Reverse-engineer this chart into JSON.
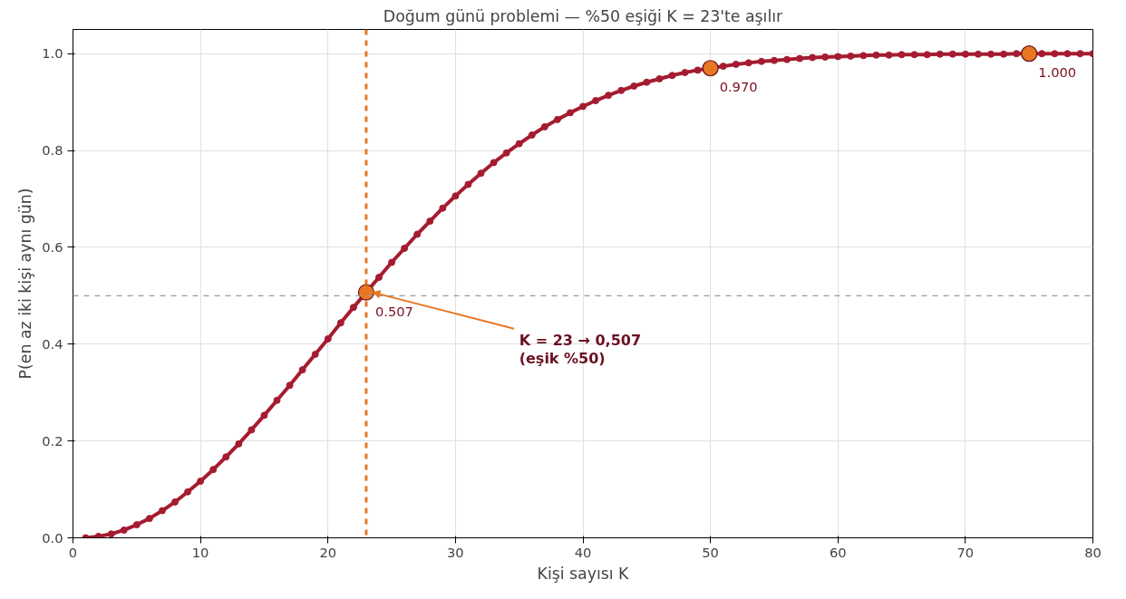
{
  "chart_data": {
    "type": "line",
    "title": "Doğum günü problemi — %50 eşiği K = 23'te aşılır",
    "xlabel": "Kişi sayısı K",
    "ylabel": "P(en az iki kişi aynı gün)",
    "xlim": [
      0,
      80
    ],
    "xticks": [
      0,
      10,
      20,
      30,
      40,
      50,
      60,
      70,
      80
    ],
    "ylim": [
      0,
      1.05
    ],
    "yticks": [
      {
        "value": 0,
        "label": "0.0"
      },
      {
        "value": 0.2,
        "label": "0.2"
      },
      {
        "value": 0.4,
        "label": "0.4"
      },
      {
        "value": 0.6,
        "label": "0.6"
      },
      {
        "value": 0.8,
        "label": "0.8"
      },
      {
        "value": 1,
        "label": "1.0"
      }
    ],
    "grid": true,
    "marker": "circle",
    "line_style": "solid",
    "series": [
      {
        "color": "#a51c30",
        "x": [
          1,
          2,
          3,
          4,
          5,
          6,
          7,
          8,
          9,
          10,
          11,
          12,
          13,
          14,
          15,
          16,
          17,
          18,
          19,
          20,
          21,
          22,
          23,
          24,
          25,
          26,
          27,
          28,
          29,
          30,
          31,
          32,
          33,
          34,
          35,
          36,
          37,
          38,
          39,
          40,
          41,
          42,
          43,
          44,
          45,
          46,
          47,
          48,
          49,
          50,
          51,
          52,
          53,
          54,
          55,
          56,
          57,
          58,
          59,
          60,
          61,
          62,
          63,
          64,
          65,
          66,
          67,
          68,
          69,
          70,
          71,
          72,
          73,
          74,
          75,
          76,
          77,
          78,
          79,
          80
        ],
        "values": [
          0.0,
          0.003,
          0.008,
          0.016,
          0.027,
          0.04,
          0.056,
          0.074,
          0.095,
          0.117,
          0.141,
          0.167,
          0.194,
          0.223,
          0.253,
          0.284,
          0.315,
          0.347,
          0.379,
          0.411,
          0.444,
          0.476,
          0.507,
          0.538,
          0.569,
          0.598,
          0.627,
          0.654,
          0.681,
          0.706,
          0.73,
          0.753,
          0.775,
          0.795,
          0.814,
          0.832,
          0.849,
          0.864,
          0.878,
          0.891,
          0.903,
          0.914,
          0.924,
          0.933,
          0.941,
          0.948,
          0.955,
          0.961,
          0.966,
          0.97,
          0.974,
          0.978,
          0.981,
          0.984,
          0.986,
          0.988,
          0.99,
          0.992,
          0.993,
          0.994,
          0.995,
          0.996,
          0.997,
          0.997,
          0.998,
          0.998,
          0.998,
          0.999,
          0.999,
          0.999,
          0.999,
          0.999,
          0.999,
          1.0,
          1.0,
          1.0,
          1.0,
          1.0,
          1.0,
          1.0
        ]
      },
      {
        "type": "scatter",
        "color": "#e87722",
        "x": [
          23,
          50,
          75
        ],
        "values": [
          0.507,
          0.97,
          1.0
        ],
        "value_labels": [
          "0.507",
          "0.970",
          "1.000"
        ]
      }
    ],
    "ref_lines": [
      {
        "axis": "y",
        "value": 0.5,
        "color": "#999999",
        "line_style": "dashed"
      },
      {
        "axis": "x",
        "value": 23,
        "color": "#e87722",
        "line_style": "dashed"
      }
    ],
    "annotations": [
      {
        "text": "K = 23 → 0,507\n(eşik %50)",
        "x": 23,
        "y": 0.507
      }
    ]
  }
}
